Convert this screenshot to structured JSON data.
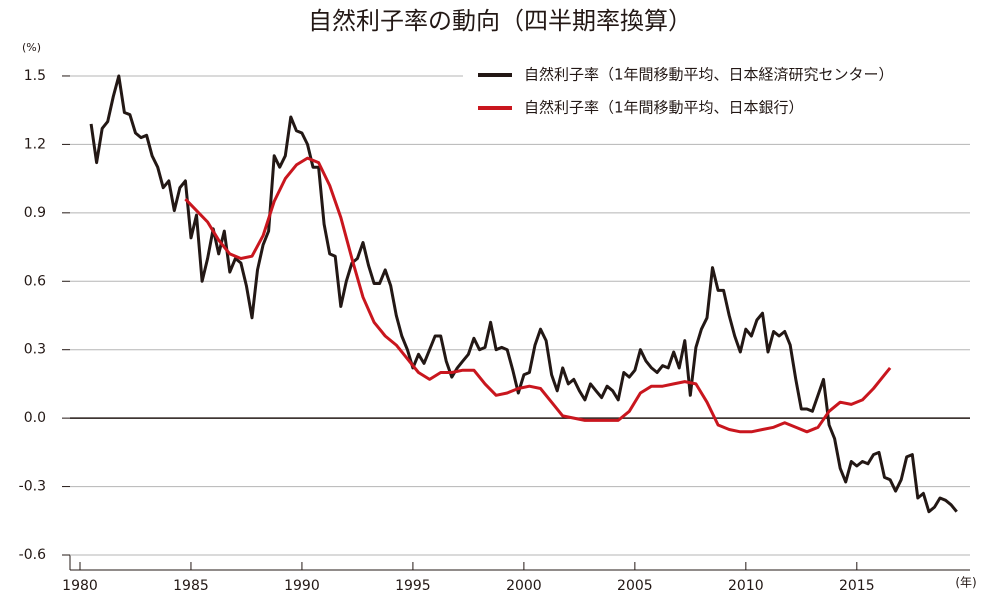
{
  "chart_data": {
    "type": "line",
    "title": "自然利子率の動向（四半期率換算）",
    "y_unit": "(%)",
    "x_unit": "(年)",
    "xlim": [
      1979.55,
      2020.1
    ],
    "xticks": [
      1980,
      1985,
      1990,
      1995,
      2000,
      2005,
      2010,
      2015
    ],
    "ylim": [
      -0.6,
      1.57
    ],
    "yticks": [
      1.5,
      1.2,
      0.9,
      0.6,
      0.3,
      {
        "value": 0,
        "label": "0.0"
      },
      -0.3,
      -0.6
    ],
    "grid": true,
    "legend": "upper right",
    "series": [
      {
        "name": "自然利子率（1年間移動平均、日本経済研究センター）",
        "color": "#231815",
        "x": [
          1980.5,
          1980.75,
          1981,
          1981.25,
          1981.5,
          1981.75,
          1982,
          1982.25,
          1982.5,
          1982.75,
          1983,
          1983.25,
          1983.5,
          1983.75,
          1984,
          1984.25,
          1984.5,
          1984.75,
          1985,
          1985.25,
          1985.5,
          1985.75,
          1986,
          1986.25,
          1986.5,
          1986.75,
          1987,
          1987.25,
          1987.5,
          1987.75,
          1988,
          1988.25,
          1988.5,
          1988.75,
          1989,
          1989.25,
          1989.5,
          1989.75,
          1990,
          1990.25,
          1990.5,
          1990.75,
          1991,
          1991.25,
          1991.5,
          1991.75,
          1992,
          1992.25,
          1992.5,
          1992.75,
          1993,
          1993.25,
          1993.5,
          1993.75,
          1994,
          1994.25,
          1994.5,
          1994.75,
          1995,
          1995.25,
          1995.5,
          1995.75,
          1996,
          1996.25,
          1996.5,
          1996.75,
          1997,
          1997.25,
          1997.5,
          1997.75,
          1998,
          1998.25,
          1998.5,
          1998.75,
          1999,
          1999.25,
          1999.5,
          1999.75,
          2000,
          2000.25,
          2000.5,
          2000.75,
          2001,
          2001.25,
          2001.5,
          2001.75,
          2002,
          2002.25,
          2002.5,
          2002.75,
          2003,
          2003.25,
          2003.5,
          2003.75,
          2004,
          2004.25,
          2004.5,
          2004.75,
          2005,
          2005.25,
          2005.5,
          2005.75,
          2006,
          2006.25,
          2006.5,
          2006.75,
          2007,
          2007.25,
          2007.5,
          2007.75,
          2008,
          2008.25,
          2008.5,
          2008.75,
          2009,
          2009.25,
          2009.5,
          2009.75,
          2010,
          2010.25,
          2010.5,
          2010.75,
          2011,
          2011.25,
          2011.5,
          2011.75,
          2012,
          2012.25,
          2012.5,
          2012.75,
          2013,
          2013.25,
          2013.5,
          2013.75,
          2014,
          2014.25,
          2014.5,
          2014.75,
          2015,
          2015.25,
          2015.5,
          2015.75,
          2016,
          2016.25,
          2016.5,
          2016.75,
          2017,
          2017.25,
          2017.5,
          2017.75,
          2018,
          2018.25,
          2018.5,
          2018.75,
          2019,
          2019.25,
          2019.5
        ],
        "values": [
          1.29,
          1.12,
          1.27,
          1.3,
          1.41,
          1.5,
          1.34,
          1.33,
          1.25,
          1.23,
          1.24,
          1.15,
          1.1,
          1.01,
          1.04,
          0.91,
          1.01,
          1.04,
          0.79,
          0.89,
          0.6,
          0.7,
          0.83,
          0.72,
          0.82,
          0.64,
          0.7,
          0.68,
          0.58,
          0.44,
          0.65,
          0.76,
          0.82,
          1.15,
          1.1,
          1.15,
          1.32,
          1.26,
          1.25,
          1.2,
          1.1,
          1.1,
          0.85,
          0.72,
          0.71,
          0.49,
          0.6,
          0.68,
          0.7,
          0.77,
          0.67,
          0.59,
          0.59,
          0.65,
          0.58,
          0.45,
          0.36,
          0.3,
          0.22,
          0.28,
          0.24,
          0.3,
          0.36,
          0.36,
          0.25,
          0.18,
          0.22,
          0.25,
          0.28,
          0.35,
          0.3,
          0.31,
          0.42,
          0.3,
          0.31,
          0.3,
          0.21,
          0.11,
          0.19,
          0.2,
          0.32,
          0.39,
          0.34,
          0.19,
          0.12,
          0.22,
          0.15,
          0.17,
          0.12,
          0.08,
          0.15,
          0.12,
          0.09,
          0.14,
          0.12,
          0.08,
          0.2,
          0.18,
          0.21,
          0.3,
          0.25,
          0.22,
          0.2,
          0.23,
          0.22,
          0.29,
          0.22,
          0.34,
          0.1,
          0.31,
          0.39,
          0.44,
          0.66,
          0.56,
          0.56,
          0.45,
          0.36,
          0.29,
          0.39,
          0.36,
          0.43,
          0.46,
          0.29,
          0.38,
          0.36,
          0.38,
          0.32,
          0.17,
          0.04,
          0.04,
          0.03,
          0.1,
          0.17,
          -0.03,
          -0.09,
          -0.22,
          -0.28,
          -0.19,
          -0.21,
          -0.19,
          -0.2,
          -0.16,
          -0.15,
          -0.26,
          -0.27,
          -0.32,
          -0.27,
          -0.17,
          -0.16,
          -0.35,
          -0.33,
          -0.41,
          -0.39,
          -0.35,
          -0.36,
          -0.38,
          -0.41
        ]
      },
      {
        "name": "自然利子率（1年間移動平均、日本銀行）",
        "color": "#c9161e",
        "x": [
          1984.75,
          1985.25,
          1985.75,
          1986.25,
          1986.75,
          1987.25,
          1987.75,
          1988.25,
          1988.75,
          1989.25,
          1989.75,
          1990.25,
          1990.75,
          1991.25,
          1991.75,
          1992.25,
          1992.75,
          1993.25,
          1993.75,
          1994.25,
          1994.75,
          1995.25,
          1995.75,
          1996.25,
          1996.75,
          1997.25,
          1997.75,
          1998.25,
          1998.75,
          1999.25,
          1999.75,
          2000.25,
          2000.75,
          2001.25,
          2001.75,
          2002.25,
          2002.75,
          2003.25,
          2003.75,
          2004.25,
          2004.75,
          2005.25,
          2005.75,
          2006.25,
          2006.75,
          2007.25,
          2007.75,
          2008.25,
          2008.75,
          2009.25,
          2009.75,
          2010.25,
          2010.75,
          2011.25,
          2011.75,
          2012.25,
          2012.75,
          2013.25,
          2013.75,
          2014.25,
          2014.75,
          2015.25,
          2015.75,
          2016.25,
          2016.5
        ],
        "values": [
          0.96,
          0.91,
          0.86,
          0.78,
          0.72,
          0.7,
          0.71,
          0.8,
          0.95,
          1.05,
          1.11,
          1.14,
          1.12,
          1.02,
          0.88,
          0.7,
          0.53,
          0.42,
          0.36,
          0.32,
          0.26,
          0.2,
          0.17,
          0.2,
          0.2,
          0.21,
          0.21,
          0.15,
          0.1,
          0.11,
          0.13,
          0.14,
          0.13,
          0.07,
          0.01,
          0.0,
          -0.01,
          -0.01,
          -0.01,
          -0.01,
          0.03,
          0.11,
          0.14,
          0.14,
          0.15,
          0.16,
          0.15,
          0.07,
          -0.03,
          -0.05,
          -0.06,
          -0.06,
          -0.05,
          -0.04,
          -0.02,
          -0.04,
          -0.06,
          -0.04,
          0.03,
          0.07,
          0.06,
          0.08,
          0.13,
          0.19,
          0.22
        ]
      }
    ]
  }
}
